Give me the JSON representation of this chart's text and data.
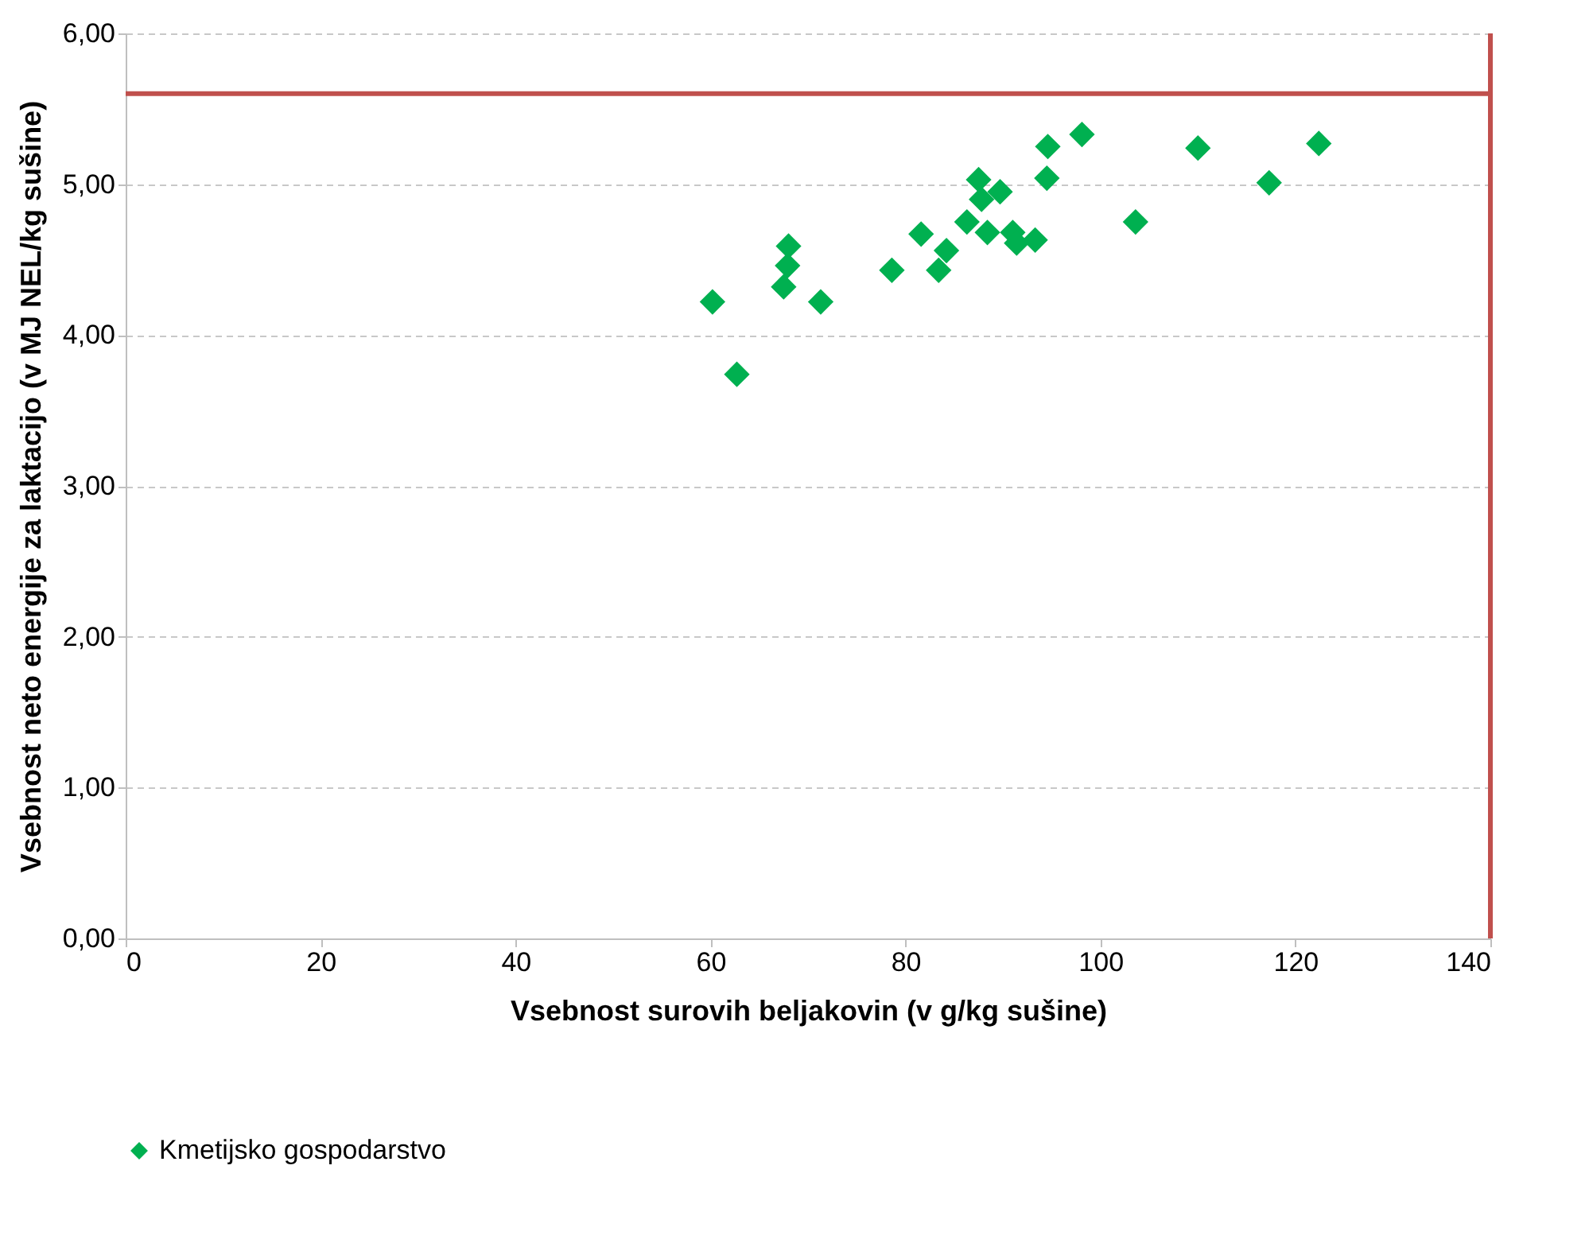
{
  "chart_data": {
    "type": "scatter",
    "xlabel": "Vsebnost surovih beljakovin (v g/kg sušine)",
    "ylabel": "Vsebnost neto energije za laktacijo (v MJ NEL/kg sušine)",
    "x": [
      60.2,
      62.7,
      67.5,
      67.9,
      68.0,
      71.3,
      78.6,
      81.6,
      83.4,
      84.2,
      86.3,
      87.5,
      87.8,
      88.4,
      89.7,
      91.0,
      91.4,
      93.3,
      94.5,
      94.6,
      98.1,
      103.6,
      110.0,
      117.3,
      122.4
    ],
    "series": [
      {
        "name": "Kmetijsko gospodarstvo",
        "color": "#00b050",
        "values": [
          4.22,
          3.74,
          4.32,
          4.46,
          4.59,
          4.22,
          4.43,
          4.67,
          4.43,
          4.56,
          4.75,
          5.03,
          4.9,
          4.68,
          4.95,
          4.68,
          4.61,
          4.63,
          5.04,
          5.25,
          5.33,
          4.75,
          5.24,
          5.01,
          5.27
        ]
      }
    ],
    "marker": "diamond",
    "xlim": [
      0,
      140
    ],
    "xticks": [
      0,
      20,
      40,
      60,
      80,
      100,
      120,
      140
    ],
    "ylim": [
      0,
      6
    ],
    "yticks": [
      {
        "value": 0,
        "label": "0,00"
      },
      {
        "value": 1,
        "label": "1,00"
      },
      {
        "value": 2,
        "label": "2,00"
      },
      {
        "value": 3,
        "label": "3,00"
      },
      {
        "value": 4,
        "label": "4,00"
      },
      {
        "value": 5,
        "label": "5,00"
      },
      {
        "value": 6,
        "label": "6,00"
      }
    ],
    "grid": "y",
    "legend": "bottom",
    "ref_lines": [
      {
        "axis": "y",
        "value": 5.6,
        "label": null,
        "color": "#c0504d"
      },
      {
        "axis": "x",
        "value": 140,
        "label": null,
        "color": "#c0504d"
      }
    ]
  }
}
